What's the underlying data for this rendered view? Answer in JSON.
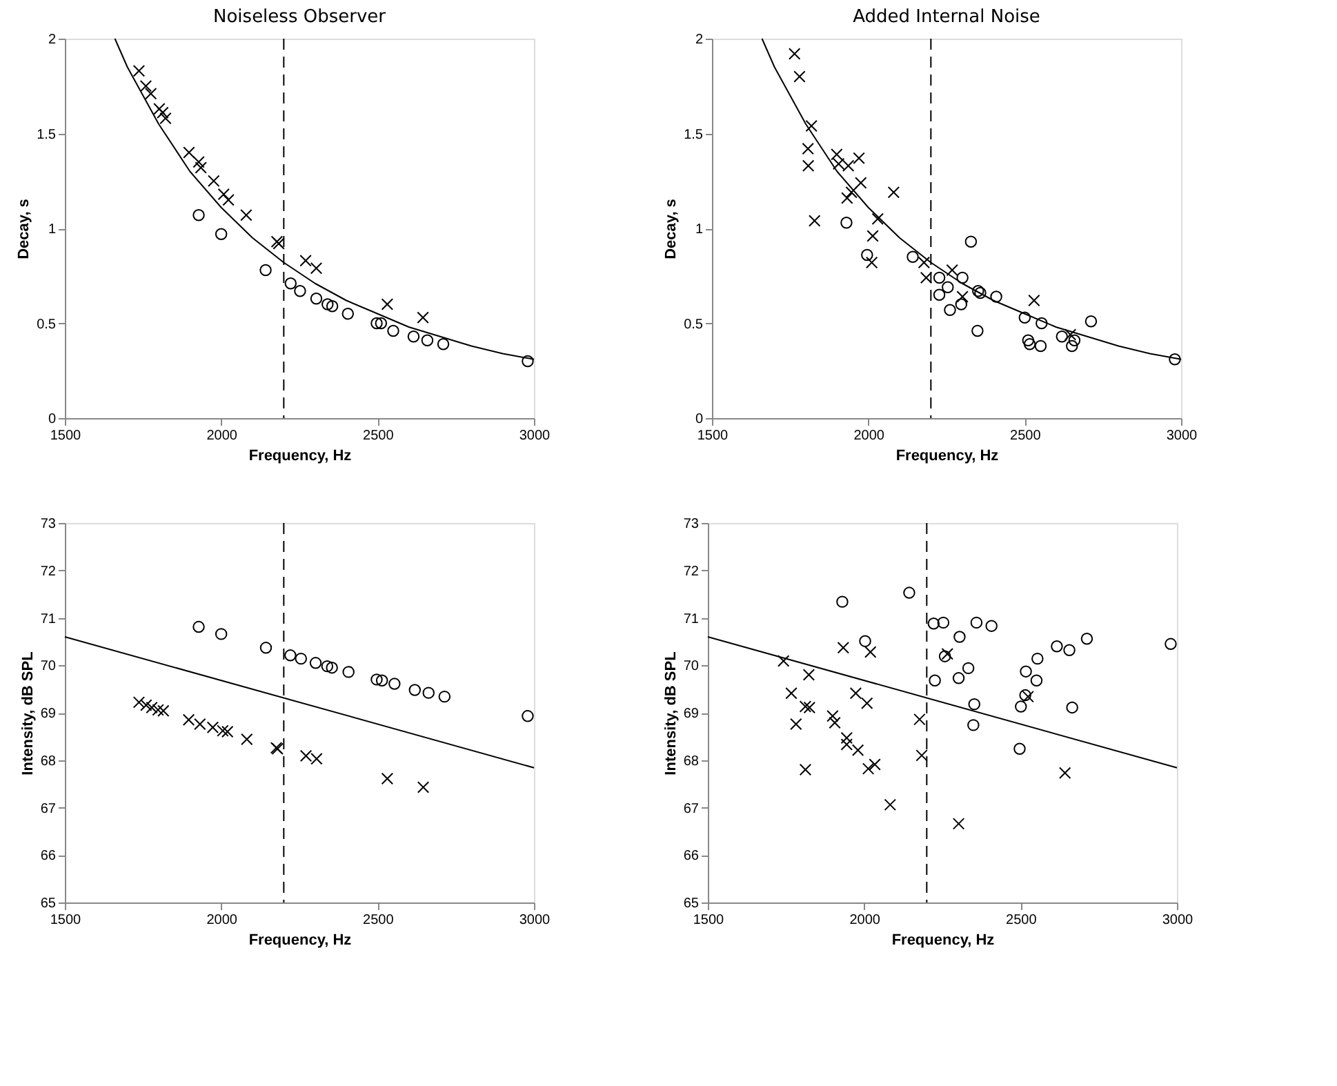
{
  "chart_data": [
    {
      "type": "scatter",
      "title": "Noiseless Observer",
      "xlabel": "Frequency, Hz",
      "ylabel": "Decay, s",
      "xlim": [
        1500,
        3000
      ],
      "xticks": [
        1500,
        2000,
        2500,
        3000
      ],
      "ylim": [
        0,
        2
      ],
      "yticks": [
        0,
        0.5,
        1,
        1.5,
        2
      ],
      "grid": false,
      "ref_lines": [
        {
          "axis": "x",
          "value": 2200,
          "line_style": "dashed",
          "color": "#000000"
        }
      ],
      "series": [
        {
          "marker": "cross",
          "color": "#000000",
          "x": [
            1737,
            1759,
            1775,
            1802,
            1813,
            1822,
            1897,
            1928,
            1935,
            1976,
            2008,
            2023,
            2080,
            2178,
            2184,
            2270,
            2304,
            2531,
            2645
          ],
          "values": [
            1.83,
            1.75,
            1.71,
            1.63,
            1.61,
            1.58,
            1.4,
            1.35,
            1.32,
            1.25,
            1.18,
            1.15,
            1.07,
            0.93,
            0.92,
            0.83,
            0.79,
            0.6,
            0.53
          ]
        },
        {
          "marker": "circle",
          "color": "#000000",
          "x": [
            1928,
            2000,
            2142,
            2222,
            2252,
            2304,
            2340,
            2355,
            2405,
            2497,
            2511,
            2550,
            2615,
            2659,
            2710,
            2980
          ],
          "values": [
            1.07,
            0.97,
            0.78,
            0.71,
            0.67,
            0.63,
            0.6,
            0.59,
            0.55,
            0.5,
            0.5,
            0.46,
            0.43,
            0.41,
            0.39,
            0.3
          ]
        },
        {
          "type": "line",
          "line_style": "solid",
          "color": "#000000",
          "x": [
            1660,
            1700,
            1800,
            1900,
            2000,
            2100,
            2200,
            2300,
            2400,
            2500,
            2600,
            2700,
            2800,
            2900,
            3000
          ],
          "values": [
            2,
            1.85,
            1.55,
            1.3,
            1.11,
            0.95,
            0.82,
            0.71,
            0.62,
            0.55,
            0.48,
            0.43,
            0.38,
            0.34,
            0.31
          ]
        }
      ]
    },
    {
      "type": "scatter",
      "title": "Added Internal Noise",
      "xlabel": "Frequency, Hz",
      "ylabel": "Decay, s",
      "xlim": [
        1500,
        3000
      ],
      "xticks": [
        1500,
        2000,
        2500,
        3000
      ],
      "ylim": [
        0,
        2
      ],
      "yticks": [
        0,
        0.5,
        1,
        1.5,
        2
      ],
      "grid": false,
      "ref_lines": [
        {
          "axis": "x",
          "value": 2200,
          "line_style": "dashed",
          "color": "#000000"
        }
      ],
      "series": [
        {
          "marker": "cross",
          "color": "#000000",
          "x": [
            1764,
            1780,
            1818,
            1807,
            1808,
            1828,
            1899,
            1905,
            1936,
            1970,
            1976,
            1932,
            1946,
            2014,
            2011,
            2030,
            2081,
            2178,
            2185,
            2268,
            2301,
            2530,
            2646
          ],
          "values": [
            1.92,
            1.8,
            1.54,
            1.42,
            1.33,
            1.04,
            1.39,
            1.34,
            1.33,
            1.37,
            1.24,
            1.16,
            1.19,
            0.96,
            0.82,
            1.05,
            1.19,
            0.82,
            0.74,
            0.78,
            0.64,
            0.62,
            0.44
          ]
        },
        {
          "marker": "circle",
          "color": "#000000",
          "x": [
            1930,
            1996,
            2142,
            2227,
            2227,
            2254,
            2261,
            2297,
            2301,
            2328,
            2349,
            2351,
            2358,
            2409,
            2500,
            2511,
            2516,
            2554,
            2551,
            2619,
            2651,
            2659,
            2712,
            2980
          ],
          "values": [
            1.03,
            0.86,
            0.85,
            0.74,
            0.65,
            0.69,
            0.57,
            0.6,
            0.74,
            0.93,
            0.46,
            0.67,
            0.66,
            0.64,
            0.53,
            0.41,
            0.39,
            0.5,
            0.38,
            0.43,
            0.38,
            0.41,
            0.51,
            0.31
          ]
        },
        {
          "type": "line",
          "line_style": "solid",
          "color": "#000000",
          "x": [
            1660,
            1700,
            1800,
            1900,
            2000,
            2100,
            2200,
            2300,
            2400,
            2500,
            2600,
            2700,
            2800,
            2900,
            3000
          ],
          "values": [
            2,
            1.85,
            1.55,
            1.3,
            1.11,
            0.95,
            0.82,
            0.71,
            0.62,
            0.55,
            0.48,
            0.43,
            0.38,
            0.34,
            0.31
          ]
        }
      ]
    },
    {
      "type": "scatter",
      "xlabel": "Frequency, Hz",
      "ylabel": "Intensity, dB SPL",
      "xlim": [
        1500,
        3000
      ],
      "xticks": [
        1500,
        2000,
        2500,
        3000
      ],
      "ylim": [
        65,
        73
      ],
      "yticks": [
        65,
        66,
        67,
        68,
        69,
        70,
        71,
        72,
        73
      ],
      "grid": false,
      "ref_lines": [
        {
          "axis": "x",
          "value": 2200,
          "line_style": "dashed",
          "color": "#000000"
        }
      ],
      "series": [
        {
          "marker": "cross",
          "color": "#000000",
          "x": [
            1737,
            1760,
            1778,
            1798,
            1815,
            1896,
            1932,
            1973,
            2005,
            2020,
            2082,
            2176,
            2180,
            2271,
            2305,
            2531,
            2646
          ],
          "values": [
            69.22,
            69.16,
            69.11,
            69.06,
            69.04,
            68.85,
            68.76,
            68.69,
            68.62,
            68.6,
            68.44,
            68.26,
            68.24,
            68.09,
            68.03,
            67.61,
            67.43
          ]
        },
        {
          "marker": "circle",
          "color": "#000000",
          "x": [
            1928,
            2000,
            2143,
            2221,
            2255,
            2302,
            2339,
            2354,
            2407,
            2497,
            2514,
            2554,
            2619,
            2663,
            2714,
            2980
          ],
          "values": [
            70.81,
            70.66,
            70.37,
            70.21,
            70.14,
            70.05,
            69.98,
            69.95,
            69.86,
            69.7,
            69.68,
            69.61,
            69.48,
            69.42,
            69.34,
            68.93
          ]
        },
        {
          "type": "line",
          "line_style": "solid",
          "color": "#000000",
          "x": [
            1500,
            3000
          ],
          "values": [
            70.6,
            67.84
          ]
        }
      ]
    },
    {
      "type": "scatter",
      "xlabel": "Frequency, Hz",
      "ylabel": "Intensity, dB SPL",
      "xlim": [
        1500,
        3000
      ],
      "xticks": [
        1500,
        2000,
        2500,
        3000
      ],
      "ylim": [
        65,
        73
      ],
      "yticks": [
        65,
        66,
        67,
        68,
        69,
        70,
        71,
        72,
        73
      ],
      "grid": false,
      "ref_lines": [
        {
          "axis": "x",
          "value": 2200,
          "line_style": "dashed",
          "color": "#000000"
        }
      ],
      "series": [
        {
          "marker": "cross",
          "color": "#000000",
          "x": [
            1742,
            1767,
            1782,
            1812,
            1823,
            1825,
            1812,
            1899,
            1906,
            1933,
            1944,
            1944,
            1973,
            1980,
            2009,
            2020,
            2013,
            2034,
            2083,
            2177,
            2184,
            2266,
            2302,
            2524,
            2642
          ],
          "values": [
            70.09,
            69.41,
            68.76,
            69.13,
            69.8,
            69.11,
            67.8,
            68.93,
            68.79,
            70.37,
            68.47,
            68.33,
            69.41,
            68.21,
            69.2,
            70.28,
            67.82,
            67.91,
            67.06,
            68.86,
            68.1,
            70.24,
            66.66,
            69.34,
            67.73
          ]
        },
        {
          "marker": "circle",
          "color": "#000000",
          "x": [
            1930,
            2003,
            2144,
            2222,
            2226,
            2253,
            2258,
            2305,
            2302,
            2333,
            2352,
            2349,
            2359,
            2407,
            2497,
            2501,
            2517,
            2515,
            2551,
            2554,
            2616,
            2656,
            2665,
            2712,
            2980
          ],
          "values": [
            71.34,
            70.51,
            71.53,
            70.88,
            69.68,
            70.9,
            70.19,
            70.6,
            69.73,
            69.94,
            69.18,
            68.74,
            70.9,
            70.83,
            68.24,
            69.13,
            69.87,
            69.37,
            69.68,
            70.14,
            70.4,
            70.32,
            69.11,
            70.56,
            70.45
          ]
        },
        {
          "type": "line",
          "line_style": "solid",
          "color": "#000000",
          "x": [
            1500,
            3000
          ],
          "values": [
            70.6,
            67.84
          ]
        }
      ]
    }
  ]
}
